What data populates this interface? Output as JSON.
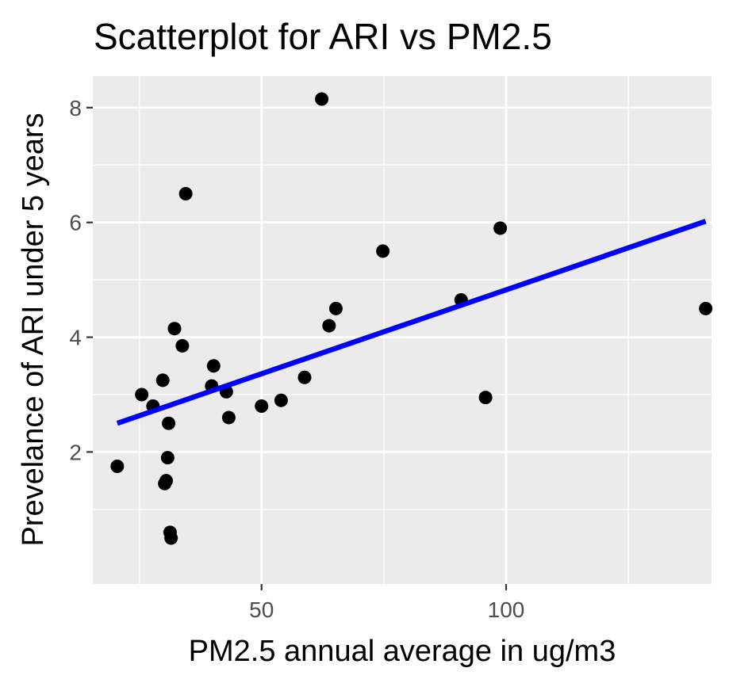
{
  "chart_data": {
    "type": "scatter",
    "title": "Scatterplot for ARI vs PM2.5",
    "xlabel": "PM2.5 annual average in ug/m3",
    "ylabel": "Prevelance of ARI under 5 years",
    "xlim": [
      15.5,
      142
    ],
    "ylim": [
      -0.3,
      8.55
    ],
    "xticks": [
      50,
      100
    ],
    "xtick_labels": [
      "50",
      "100"
    ],
    "yticks": [
      2,
      4,
      6,
      8
    ],
    "ytick_labels": [
      "2",
      "4",
      "6",
      "8"
    ],
    "grid": true,
    "legend": "none",
    "points": [
      {
        "x": 20.5,
        "y": 1.75
      },
      {
        "x": 25.5,
        "y": 3.0
      },
      {
        "x": 27.8,
        "y": 2.8
      },
      {
        "x": 29.8,
        "y": 3.25
      },
      {
        "x": 30.2,
        "y": 1.45
      },
      {
        "x": 30.5,
        "y": 1.5
      },
      {
        "x": 30.8,
        "y": 1.9
      },
      {
        "x": 31.0,
        "y": 2.5
      },
      {
        "x": 31.3,
        "y": 0.6
      },
      {
        "x": 31.5,
        "y": 0.5
      },
      {
        "x": 32.2,
        "y": 4.15
      },
      {
        "x": 33.8,
        "y": 3.85
      },
      {
        "x": 34.5,
        "y": 6.5
      },
      {
        "x": 39.8,
        "y": 3.15
      },
      {
        "x": 40.2,
        "y": 3.5
      },
      {
        "x": 42.8,
        "y": 3.05
      },
      {
        "x": 43.3,
        "y": 2.6
      },
      {
        "x": 50.0,
        "y": 2.8
      },
      {
        "x": 54.0,
        "y": 2.9
      },
      {
        "x": 58.8,
        "y": 3.3
      },
      {
        "x": 62.3,
        "y": 8.15
      },
      {
        "x": 63.8,
        "y": 4.2
      },
      {
        "x": 65.2,
        "y": 4.5
      },
      {
        "x": 74.8,
        "y": 5.5
      },
      {
        "x": 90.8,
        "y": 4.65
      },
      {
        "x": 95.8,
        "y": 2.95
      },
      {
        "x": 98.8,
        "y": 5.9
      },
      {
        "x": 140.8,
        "y": 4.5
      }
    ],
    "trendline": {
      "color": "#0000ff",
      "x1": 20.5,
      "y1": 2.5,
      "x2": 140.8,
      "y2": 6.02
    },
    "colors": {
      "panel": "#ebebeb",
      "grid": "#ffffff",
      "point": "#000000",
      "tick": "#333333"
    }
  }
}
